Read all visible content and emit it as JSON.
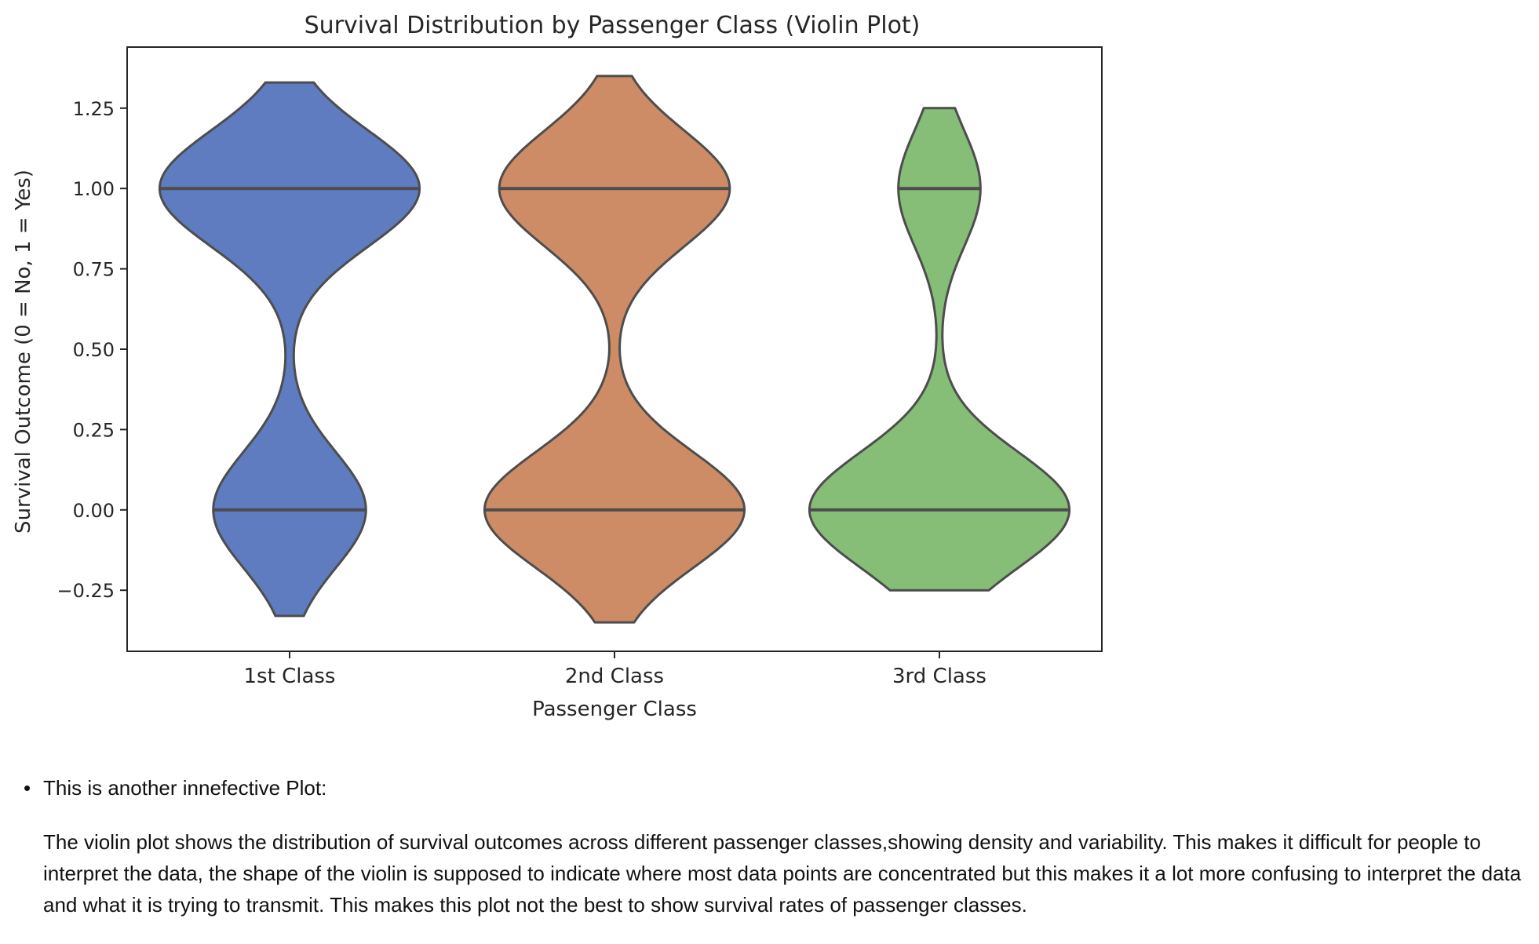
{
  "chart_data": {
    "type": "violin",
    "title": "Survival Distribution by Passenger Class (Violin Plot)",
    "xlabel": "Passenger Class",
    "ylabel": "Survival Outcome (0 = No, 1 = Yes)",
    "categories": [
      "1st Class",
      "2nd Class",
      "3rd Class"
    ],
    "ylim": [
      -0.44,
      1.44
    ],
    "yticks": [
      -0.25,
      0.0,
      0.25,
      0.5,
      0.75,
      1.0,
      1.25
    ],
    "ytick_labels": [
      "−0.25",
      "0.00",
      "0.25",
      "0.50",
      "0.75",
      "1.00",
      "1.25"
    ],
    "grid": false,
    "series": [
      {
        "category": "1st Class",
        "color": "#5E7CBF",
        "survived_fraction": 0.63,
        "y_range": [
          -0.33,
          1.33
        ],
        "quartile_lines": [
          0.0,
          1.0
        ]
      },
      {
        "category": "2nd Class",
        "color": "#CE8C66",
        "survived_fraction": 0.47,
        "y_range": [
          -0.35,
          1.35
        ],
        "quartile_lines": [
          0.0,
          1.0
        ]
      },
      {
        "category": "3rd Class",
        "color": "#86BE78",
        "survived_fraction": 0.24,
        "y_range": [
          -0.25,
          1.25
        ],
        "quartile_lines": [
          0.0,
          1.0
        ]
      }
    ]
  },
  "notes": {
    "bullet": "This is another innefective Plot:",
    "paragraph": "The violin plot shows the distribution of survival outcomes across different passenger classes,showing density and variability. This makes it difficult for people to interpret the data, the shape of the violin is supposed to indicate where most data points are concentrated but this makes it a lot more confusing to interpret the data and what it is trying to transmit. This makes this plot not the best to show survival rates of passenger classes."
  }
}
